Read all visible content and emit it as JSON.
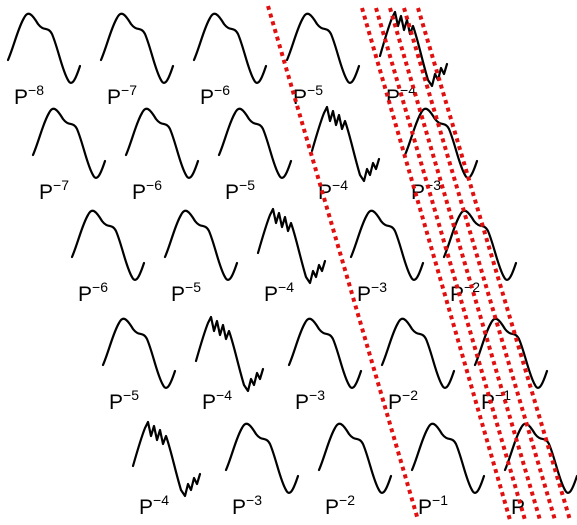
{
  "diagram": {
    "rows": [
      {
        "cells": [
          {
            "base": "P",
            "exp": "−8",
            "shape": "smooth"
          },
          {
            "base": "P",
            "exp": "−7",
            "shape": "smooth"
          },
          {
            "base": "P",
            "exp": "−6",
            "shape": "smooth"
          },
          {
            "base": "P",
            "exp": "−5",
            "shape": "smooth"
          },
          {
            "base": "P",
            "exp": "−4",
            "shape": "noisy"
          }
        ]
      },
      {
        "cells": [
          {
            "base": "P",
            "exp": "−7",
            "shape": "smooth"
          },
          {
            "base": "P",
            "exp": "−6",
            "shape": "smooth"
          },
          {
            "base": "P",
            "exp": "−5",
            "shape": "smooth"
          },
          {
            "base": "P",
            "exp": "−4",
            "shape": "noisy"
          },
          {
            "base": "P",
            "exp": "−3",
            "shape": "smooth"
          }
        ]
      },
      {
        "cells": [
          {
            "base": "P",
            "exp": "−6",
            "shape": "smooth"
          },
          {
            "base": "P",
            "exp": "−5",
            "shape": "smooth"
          },
          {
            "base": "P",
            "exp": "−4",
            "shape": "noisy"
          },
          {
            "base": "P",
            "exp": "−3",
            "shape": "smooth"
          },
          {
            "base": "P",
            "exp": "−2",
            "shape": "smooth"
          }
        ]
      },
      {
        "cells": [
          {
            "base": "P",
            "exp": "−5",
            "shape": "smooth"
          },
          {
            "base": "P",
            "exp": "−4",
            "shape": "noisy"
          },
          {
            "base": "P",
            "exp": "−3",
            "shape": "smooth"
          },
          {
            "base": "P",
            "exp": "−2",
            "shape": "smooth"
          },
          {
            "base": "P",
            "exp": "−1",
            "shape": "smooth"
          }
        ]
      },
      {
        "cells": [
          {
            "base": "P",
            "exp": "−4",
            "shape": "noisy"
          },
          {
            "base": "P",
            "exp": "−3",
            "shape": "smooth"
          },
          {
            "base": "P",
            "exp": "−2",
            "shape": "smooth"
          },
          {
            "base": "P",
            "exp": "−1",
            "shape": "smooth"
          },
          {
            "base": "P",
            "exp": "",
            "shape": "smooth"
          }
        ]
      }
    ],
    "colors": {
      "wave": "#000000",
      "dashed_line": "#e01010"
    }
  }
}
